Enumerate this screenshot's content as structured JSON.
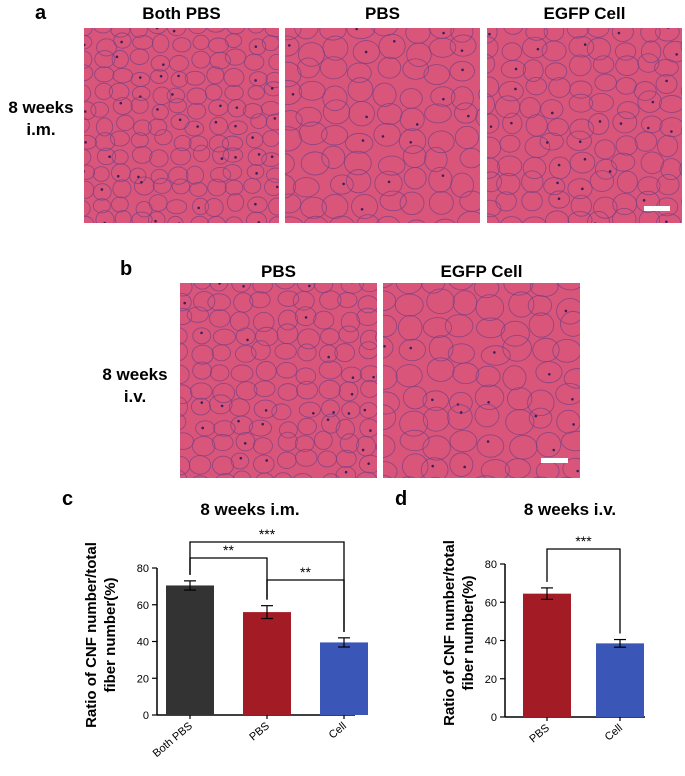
{
  "panel_a": {
    "letter": "a",
    "columns": [
      "Both PBS",
      "PBS",
      "EGFP Cell"
    ],
    "row_label_line1": "8 weeks",
    "row_label_line2": "i.m."
  },
  "panel_b": {
    "letter": "b",
    "columns": [
      "PBS",
      "EGFP Cell"
    ],
    "row_label_line1": "8 weeks",
    "row_label_line2": "i.v."
  },
  "panel_c": {
    "letter": "c",
    "ylabel_line1": "Ratio of CNF number/total",
    "ylabel_line2": "fiber number(%)"
  },
  "panel_d": {
    "letter": "d",
    "ylabel_line1": "Ratio of CNF number/total",
    "ylabel_line2": "fiber number(%)"
  },
  "colors": {
    "tissue_pink": "#d9567a",
    "membrane": "#7a3f86",
    "bar_dark": "#333333",
    "bar_red": "#a31b24",
    "bar_blue": "#3a57b7"
  },
  "chart_data": [
    {
      "type": "bar",
      "title": "8 weeks  i.m.",
      "categories": [
        "Both PBS",
        "PBS",
        "Cell"
      ],
      "values": [
        70.5,
        56,
        39.5
      ],
      "errors": [
        2.5,
        3.5,
        2.5
      ],
      "colors": [
        "#333333",
        "#a31b24",
        "#3a57b7"
      ],
      "ylim": [
        0,
        80
      ],
      "yticks": [
        0,
        20,
        40,
        60,
        80
      ],
      "significance": [
        {
          "from": 0,
          "to": 1,
          "label": "**"
        },
        {
          "from": 1,
          "to": 2,
          "label": "**"
        },
        {
          "from": 0,
          "to": 2,
          "label": "***"
        }
      ]
    },
    {
      "type": "bar",
      "title": "8 weeks  i.v.",
      "categories": [
        "PBS",
        "Cell"
      ],
      "values": [
        64.5,
        38.5
      ],
      "errors": [
        3,
        2
      ],
      "colors": [
        "#a31b24",
        "#3a57b7"
      ],
      "ylim": [
        0,
        80
      ],
      "yticks": [
        0,
        20,
        40,
        60,
        80
      ],
      "significance": [
        {
          "from": 0,
          "to": 1,
          "label": "***"
        }
      ]
    }
  ]
}
